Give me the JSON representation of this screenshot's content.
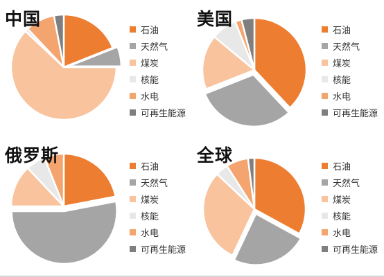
{
  "chart_data": [
    {
      "type": "pie",
      "title": "中国",
      "categories": [
        "石油",
        "天然气",
        "煤炭",
        "核能",
        "水电",
        "可再生能源"
      ],
      "values": [
        19,
        6,
        62,
        1,
        9,
        3
      ],
      "exploded": [
        "天然气"
      ],
      "legend_position": "right"
    },
    {
      "type": "pie",
      "title": "美国",
      "categories": [
        "石油",
        "天然气",
        "煤炭",
        "核能",
        "水电",
        "可再生能源"
      ],
      "values": [
        38,
        31,
        17,
        8,
        2,
        4
      ],
      "exploded": [
        "天然气"
      ],
      "legend_position": "right"
    },
    {
      "type": "pie",
      "title": "俄罗斯",
      "categories": [
        "石油",
        "天然气",
        "煤炭",
        "核能",
        "水电",
        "可再生能源"
      ],
      "values": [
        22,
        53,
        13,
        6,
        6,
        0
      ],
      "exploded": [
        "天然气"
      ],
      "legend_position": "right"
    },
    {
      "type": "pie",
      "title": "全球",
      "categories": [
        "石油",
        "天然气",
        "煤炭",
        "核能",
        "水电",
        "可再生能源"
      ],
      "values": [
        33,
        24,
        30,
        4,
        7,
        2
      ],
      "exploded": [
        "天然气"
      ],
      "legend_position": "right"
    }
  ],
  "colors": [
    "#ed7d31",
    "#a5a5a5",
    "#f8c39d",
    "#e8e8e8",
    "#f4a46e",
    "#7f7f7f"
  ]
}
